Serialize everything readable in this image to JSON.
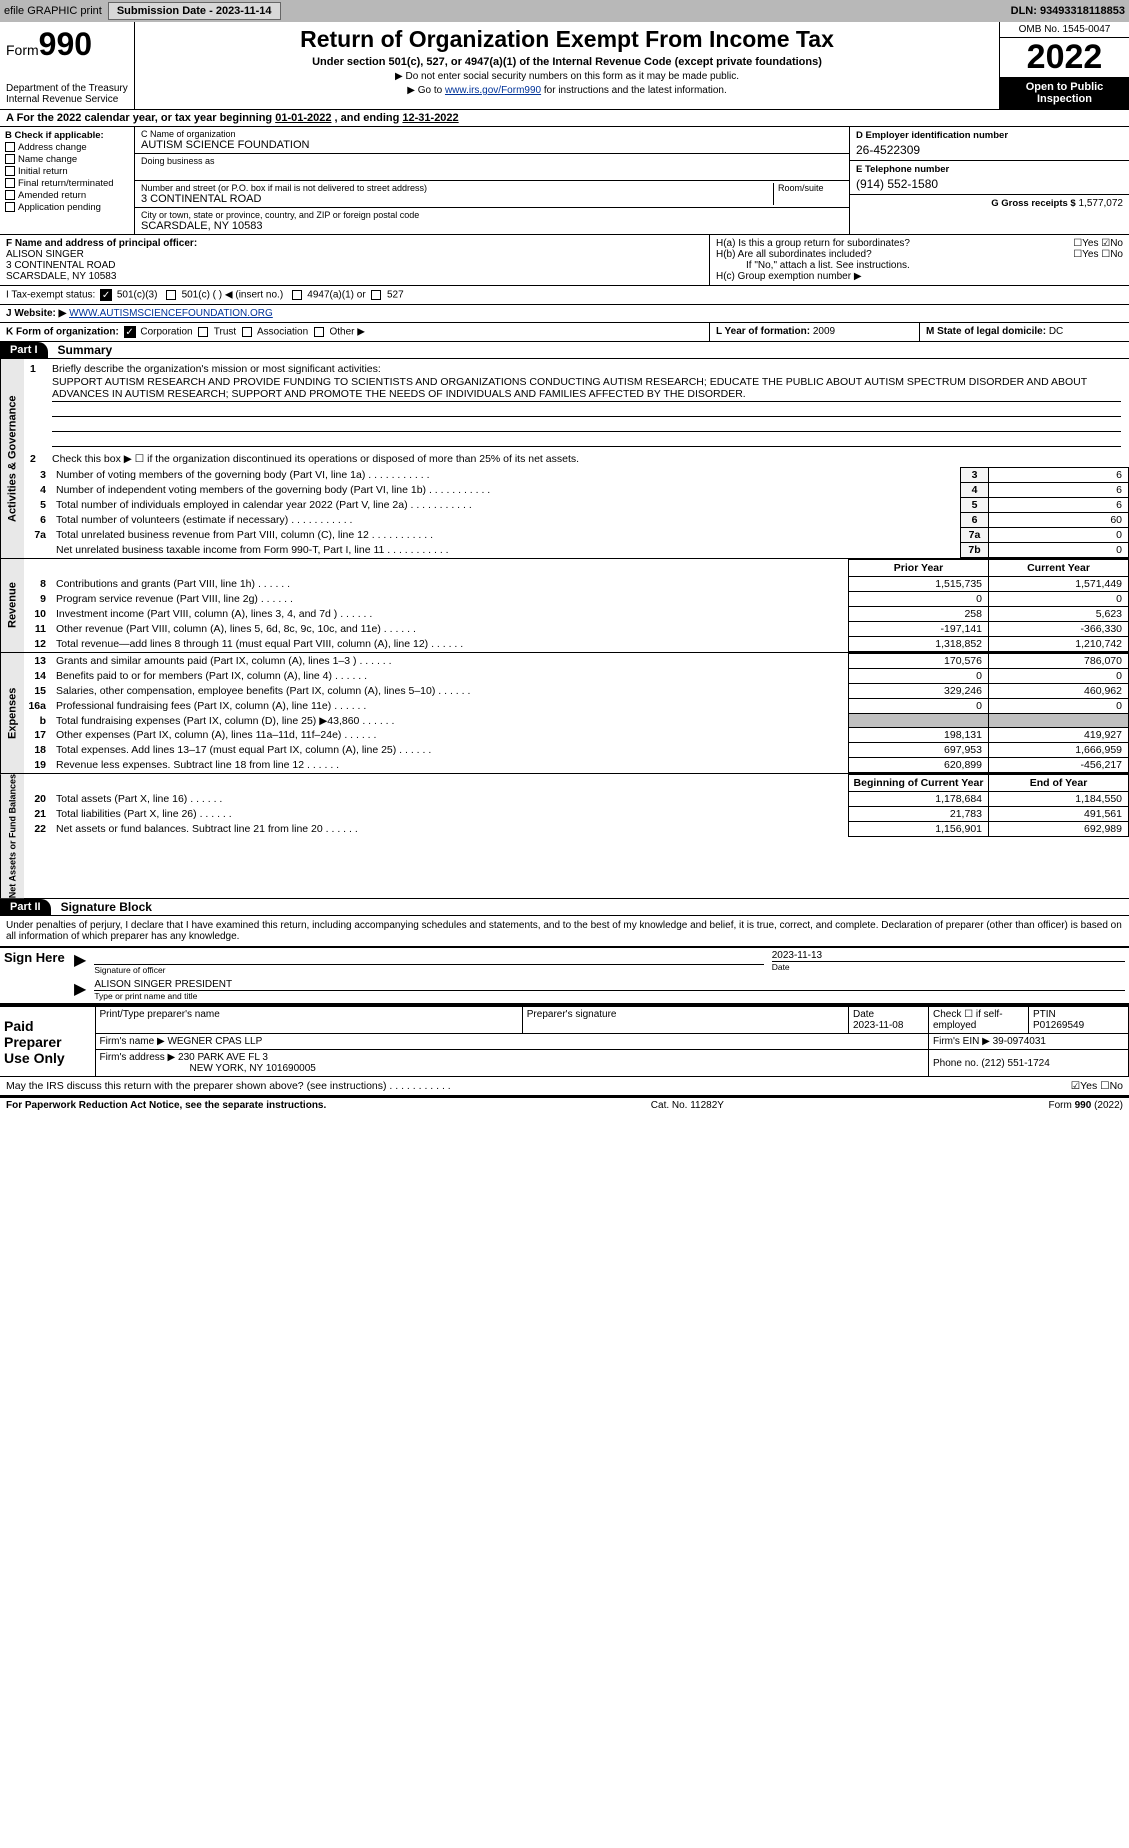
{
  "topbar": {
    "efile": "efile GRAPHIC print",
    "submission": "Submission Date - 2023-11-14",
    "dln": "DLN: 93493318118853"
  },
  "header": {
    "formWord": "Form",
    "formNum": "990",
    "dept": "Department of the Treasury",
    "irs": "Internal Revenue Service",
    "title": "Return of Organization Exempt From Income Tax",
    "subtitle": "Under section 501(c), 527, or 4947(a)(1) of the Internal Revenue Code (except private foundations)",
    "note1": "▶ Do not enter social security numbers on this form as it may be made public.",
    "note2a": "▶ Go to ",
    "note2link": "www.irs.gov/Form990",
    "note2b": " for instructions and the latest information.",
    "omb": "OMB No. 1545-0047",
    "year": "2022",
    "open": "Open to Public Inspection"
  },
  "period": {
    "a": "A For the 2022 calendar year, or tax year beginning ",
    "begin": "01-01-2022",
    "mid": " , and ending ",
    "end": "12-31-2022"
  },
  "boxB": {
    "title": "B Check if applicable:",
    "opts": [
      "Address change",
      "Name change",
      "Initial return",
      "Final return/terminated",
      "Amended return",
      "Application pending"
    ]
  },
  "boxC": {
    "label": "C Name of organization",
    "name": "AUTISM SCIENCE FOUNDATION",
    "dba": "Doing business as",
    "addrLabel": "Number and street (or P.O. box if mail is not delivered to street address)",
    "room": "Room/suite",
    "addr": "3 CONTINENTAL ROAD",
    "cityLabel": "City or town, state or province, country, and ZIP or foreign postal code",
    "city": "SCARSDALE, NY  10583"
  },
  "boxD": {
    "label": "D Employer identification number",
    "val": "26-4522309"
  },
  "boxE": {
    "label": "E Telephone number",
    "val": "(914) 552-1580"
  },
  "boxG": {
    "label": "G Gross receipts $",
    "val": "1,577,072"
  },
  "boxF": {
    "label": "F Name and address of principal officer:",
    "name": "ALISON SINGER",
    "addr1": "3 CONTINENTAL ROAD",
    "addr2": "SCARSDALE, NY  10583"
  },
  "boxH": {
    "a": "H(a)  Is this a group return for subordinates?",
    "aAns": "☐Yes ☑No",
    "b": "H(b)  Are all subordinates included?",
    "bAns": "☐Yes ☐No",
    "bNote": "If \"No,\" attach a list. See instructions.",
    "c": "H(c)  Group exemption number ▶"
  },
  "boxI": {
    "label": "I Tax-exempt status:",
    "c3": "501(c)(3)",
    "c": "501(c) (    ) ◀ (insert no.)",
    "a1": "4947(a)(1) or",
    "527": "527"
  },
  "boxJ": {
    "label": "J Website: ▶",
    "val": "WWW.AUTISMSCIENCEFOUNDATION.ORG"
  },
  "boxK": {
    "label": "K Form of organization:",
    "corp": "Corporation",
    "trust": "Trust",
    "assoc": "Association",
    "other": "Other ▶"
  },
  "boxL": {
    "label": "L Year of formation:",
    "val": "2009"
  },
  "boxM": {
    "label": "M State of legal domicile:",
    "val": "DC"
  },
  "part1": {
    "tab": "Part I",
    "title": "Summary",
    "vtab1": "Activities & Governance",
    "vtab2": "Revenue",
    "vtab3": "Expenses",
    "vtab4": "Net Assets or Fund Balances",
    "l1": "Briefly describe the organization's mission or most significant activities:",
    "l1text": "SUPPORT AUTISM RESEARCH AND PROVIDE FUNDING TO SCIENTISTS AND ORGANIZATIONS CONDUCTING AUTISM RESEARCH; EDUCATE THE PUBLIC ABOUT AUTISM SPECTRUM DISORDER AND ABOUT ADVANCES IN AUTISM RESEARCH; SUPPORT AND PROMOTE THE NEEDS OF INDIVIDUALS AND FAMILIES AFFECTED BY THE DISORDER.",
    "l2": "Check this box ▶ ☐ if the organization discontinued its operations or disposed of more than 25% of its net assets.",
    "rows": [
      {
        "n": "3",
        "t": "Number of voting members of the governing body (Part VI, line 1a)",
        "box": "3",
        "v": "6"
      },
      {
        "n": "4",
        "t": "Number of independent voting members of the governing body (Part VI, line 1b)",
        "box": "4",
        "v": "6"
      },
      {
        "n": "5",
        "t": "Total number of individuals employed in calendar year 2022 (Part V, line 2a)",
        "box": "5",
        "v": "6"
      },
      {
        "n": "6",
        "t": "Total number of volunteers (estimate if necessary)",
        "box": "6",
        "v": "60"
      },
      {
        "n": "7a",
        "t": "Total unrelated business revenue from Part VIII, column (C), line 12",
        "box": "7a",
        "v": "0"
      },
      {
        "n": "",
        "t": "Net unrelated business taxable income from Form 990-T, Part I, line 11",
        "box": "7b",
        "v": "0"
      }
    ],
    "headerPrior": "Prior Year",
    "headerCurrent": "Current Year",
    "revRows": [
      {
        "n": "8",
        "t": "Contributions and grants (Part VIII, line 1h)",
        "p": "1,515,735",
        "c": "1,571,449"
      },
      {
        "n": "9",
        "t": "Program service revenue (Part VIII, line 2g)",
        "p": "0",
        "c": "0"
      },
      {
        "n": "10",
        "t": "Investment income (Part VIII, column (A), lines 3, 4, and 7d )",
        "p": "258",
        "c": "5,623"
      },
      {
        "n": "11",
        "t": "Other revenue (Part VIII, column (A), lines 5, 6d, 8c, 9c, 10c, and 11e)",
        "p": "-197,141",
        "c": "-366,330"
      },
      {
        "n": "12",
        "t": "Total revenue—add lines 8 through 11 (must equal Part VIII, column (A), line 12)",
        "p": "1,318,852",
        "c": "1,210,742"
      }
    ],
    "expRows": [
      {
        "n": "13",
        "t": "Grants and similar amounts paid (Part IX, column (A), lines 1–3 )",
        "p": "170,576",
        "c": "786,070"
      },
      {
        "n": "14",
        "t": "Benefits paid to or for members (Part IX, column (A), line 4)",
        "p": "0",
        "c": "0"
      },
      {
        "n": "15",
        "t": "Salaries, other compensation, employee benefits (Part IX, column (A), lines 5–10)",
        "p": "329,246",
        "c": "460,962"
      },
      {
        "n": "16a",
        "t": "Professional fundraising fees (Part IX, column (A), line 11e)",
        "p": "0",
        "c": "0"
      },
      {
        "n": "b",
        "t": "Total fundraising expenses (Part IX, column (D), line 25) ▶43,860",
        "p": "",
        "c": "",
        "shaded": true
      },
      {
        "n": "17",
        "t": "Other expenses (Part IX, column (A), lines 11a–11d, 11f–24e)",
        "p": "198,131",
        "c": "419,927"
      },
      {
        "n": "18",
        "t": "Total expenses. Add lines 13–17 (must equal Part IX, column (A), line 25)",
        "p": "697,953",
        "c": "1,666,959"
      },
      {
        "n": "19",
        "t": "Revenue less expenses. Subtract line 18 from line 12",
        "p": "620,899",
        "c": "-456,217"
      }
    ],
    "headerBegin": "Beginning of Current Year",
    "headerEnd": "End of Year",
    "netRows": [
      {
        "n": "20",
        "t": "Total assets (Part X, line 16)",
        "p": "1,178,684",
        "c": "1,184,550"
      },
      {
        "n": "21",
        "t": "Total liabilities (Part X, line 26)",
        "p": "21,783",
        "c": "491,561"
      },
      {
        "n": "22",
        "t": "Net assets or fund balances. Subtract line 21 from line 20",
        "p": "1,156,901",
        "c": "692,989"
      }
    ]
  },
  "part2": {
    "tab": "Part II",
    "title": "Signature Block",
    "decl": "Under penalties of perjury, I declare that I have examined this return, including accompanying schedules and statements, and to the best of my knowledge and belief, it is true, correct, and complete. Declaration of preparer (other than officer) is based on all information of which preparer has any knowledge.",
    "signHere": "Sign Here",
    "sigOfficer": "Signature of officer",
    "sigDate": "2023-11-13",
    "dateL": "Date",
    "sigName": "ALISON SINGER  PRESIDENT",
    "sigNameL": "Type or print name and title",
    "paid": "Paid Preparer Use Only",
    "pName": "Print/Type preparer's name",
    "pSig": "Preparer's signature",
    "pDate": "Date",
    "pDateV": "2023-11-08",
    "pSelfL": "Check ☐ if self-employed",
    "ptinL": "PTIN",
    "ptin": "P01269549",
    "firmNameL": "Firm's name    ▶",
    "firmName": "WEGNER CPAS LLP",
    "firmEinL": "Firm's EIN ▶",
    "firmEin": "39-0974031",
    "firmAddrL": "Firm's address ▶",
    "firmAddr1": "230 PARK AVE FL 3",
    "firmAddr2": "NEW YORK, NY  101690005",
    "phoneL": "Phone no.",
    "phone": "(212) 551-1724",
    "discuss": "May the IRS discuss this return with the preparer shown above? (see instructions)",
    "discussAns": "☑Yes  ☐No"
  },
  "footer": {
    "left": "For Paperwork Reduction Act Notice, see the separate instructions.",
    "mid": "Cat. No. 11282Y",
    "right": "Form 990 (2022)"
  }
}
